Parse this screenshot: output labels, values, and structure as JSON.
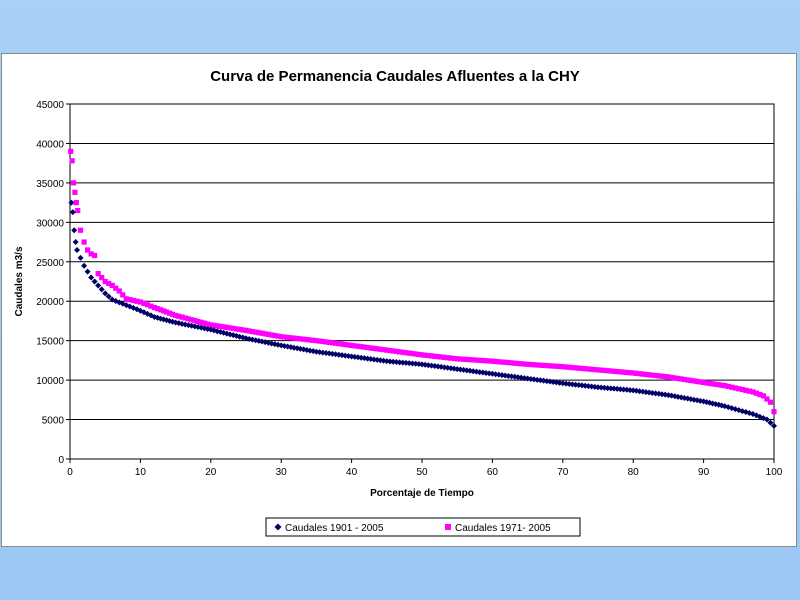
{
  "colors": {
    "background": "#a9d0f7",
    "series_1901": "#000066",
    "series_1971": "#ff00ff",
    "grid": "#000000"
  },
  "chart_data": {
    "type": "scatter",
    "title": "Curva de Permanencia Caudales Afluentes a la CHY",
    "xlabel": "Porcentaje de Tiempo",
    "ylabel": "Caudales m3/s",
    "xlim": [
      0,
      100
    ],
    "ylim": [
      0,
      45000
    ],
    "xticks": [
      0,
      10,
      20,
      30,
      40,
      50,
      60,
      70,
      80,
      90,
      100
    ],
    "yticks": [
      0,
      5000,
      10000,
      15000,
      20000,
      25000,
      30000,
      35000,
      40000,
      45000
    ],
    "grid": "horizontal",
    "legend_position": "bottom",
    "series": [
      {
        "name": "Caudales 1901 - 2005",
        "marker": "diamond",
        "color": "#000066",
        "points": [
          [
            0.2,
            32500
          ],
          [
            0.4,
            31300
          ],
          [
            0.6,
            29000
          ],
          [
            0.8,
            27500
          ],
          [
            1.0,
            26500
          ],
          [
            1.5,
            25500
          ],
          [
            2.0,
            24500
          ],
          [
            3.0,
            23000
          ],
          [
            4.0,
            22000
          ],
          [
            5.0,
            21000
          ],
          [
            6.0,
            20200
          ],
          [
            8.0,
            19500
          ],
          [
            10.0,
            18800
          ],
          [
            12.0,
            18000
          ],
          [
            15.0,
            17300
          ],
          [
            20.0,
            16400
          ],
          [
            25.0,
            15300
          ],
          [
            30.0,
            14400
          ],
          [
            35.0,
            13600
          ],
          [
            40.0,
            13000
          ],
          [
            45.0,
            12400
          ],
          [
            50.0,
            12000
          ],
          [
            55.0,
            11400
          ],
          [
            60.0,
            10800
          ],
          [
            65.0,
            10200
          ],
          [
            70.0,
            9600
          ],
          [
            75.0,
            9100
          ],
          [
            80.0,
            8700
          ],
          [
            85.0,
            8100
          ],
          [
            90.0,
            7300
          ],
          [
            93.0,
            6700
          ],
          [
            95.0,
            6200
          ],
          [
            97.0,
            5700
          ],
          [
            99.0,
            5000
          ],
          [
            100.0,
            4200
          ]
        ]
      },
      {
        "name": "Caudales 1971- 2005",
        "marker": "square",
        "color": "#ff00ff",
        "points": [
          [
            0.1,
            39000
          ],
          [
            0.3,
            37800
          ],
          [
            0.5,
            35000
          ],
          [
            0.7,
            33800
          ],
          [
            0.9,
            32500
          ],
          [
            1.1,
            31500
          ],
          [
            1.5,
            29000
          ],
          [
            2.0,
            27500
          ],
          [
            2.5,
            26500
          ],
          [
            3.0,
            26000
          ],
          [
            3.5,
            25800
          ],
          [
            4.0,
            23500
          ],
          [
            5.0,
            22500
          ],
          [
            6.0,
            22000
          ],
          [
            7.0,
            21300
          ],
          [
            8.0,
            20300
          ],
          [
            10.0,
            19900
          ],
          [
            12.0,
            19200
          ],
          [
            15.0,
            18200
          ],
          [
            20.0,
            17000
          ],
          [
            25.0,
            16300
          ],
          [
            30.0,
            15500
          ],
          [
            35.0,
            15000
          ],
          [
            40.0,
            14400
          ],
          [
            45.0,
            13800
          ],
          [
            50.0,
            13200
          ],
          [
            55.0,
            12700
          ],
          [
            60.0,
            12400
          ],
          [
            65.0,
            12000
          ],
          [
            70.0,
            11700
          ],
          [
            75.0,
            11300
          ],
          [
            80.0,
            10900
          ],
          [
            85.0,
            10400
          ],
          [
            90.0,
            9700
          ],
          [
            93.0,
            9300
          ],
          [
            95.0,
            8900
          ],
          [
            97.0,
            8500
          ],
          [
            98.5,
            8000
          ],
          [
            99.5,
            7200
          ],
          [
            100.0,
            6000
          ]
        ]
      }
    ]
  }
}
